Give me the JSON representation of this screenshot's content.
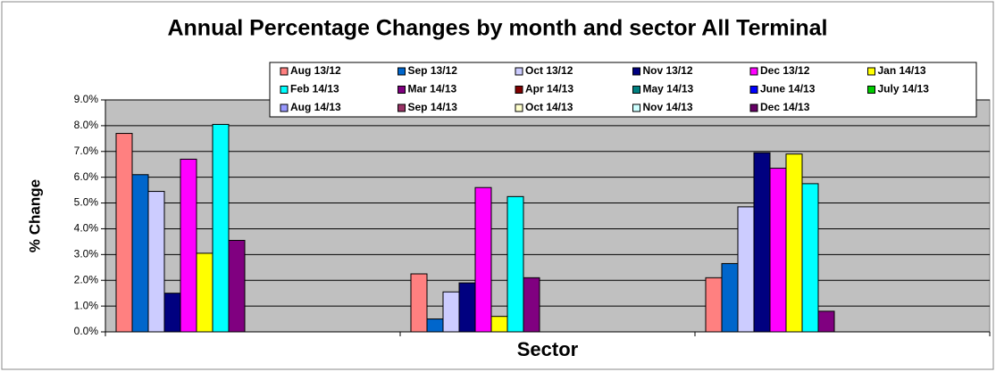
{
  "chart_data": {
    "type": "bar",
    "title": "Annual Percentage Changes by month and sector All Terminal",
    "x_label": "Sector",
    "y_label": "% Change",
    "categories": [
      null,
      null,
      null
    ],
    "series": [
      {
        "name": "Aug 13/12",
        "color": "#ff8080",
        "values": [
          7.7,
          2.25,
          2.1
        ]
      },
      {
        "name": "Sep 13/12",
        "color": "#0066cc",
        "values": [
          6.1,
          0.5,
          2.65
        ]
      },
      {
        "name": "Oct 13/12",
        "color": "#ccccff",
        "values": [
          5.45,
          1.55,
          4.85
        ]
      },
      {
        "name": "Nov 13/12",
        "color": "#000080",
        "values": [
          1.5,
          1.9,
          6.95
        ]
      },
      {
        "name": "Dec 13/12",
        "color": "#ff00ff",
        "values": [
          6.7,
          5.6,
          6.35
        ]
      },
      {
        "name": "Jan 14/13",
        "color": "#ffff00",
        "values": [
          3.05,
          0.6,
          6.9
        ]
      },
      {
        "name": "Feb 14/13",
        "color": "#00ffff",
        "values": [
          8.05,
          5.25,
          5.75
        ]
      },
      {
        "name": "Mar 14/13",
        "color": "#800080",
        "values": [
          3.55,
          2.1,
          0.8
        ]
      },
      {
        "name": "Apr 14/13",
        "color": "#800000",
        "values": [
          null,
          null,
          null
        ]
      },
      {
        "name": "May 14/13",
        "color": "#008080",
        "values": [
          null,
          null,
          null
        ]
      },
      {
        "name": "June 14/13",
        "color": "#0000ff",
        "values": [
          null,
          null,
          null
        ]
      },
      {
        "name": "July 14/13",
        "color": "#00cc00",
        "values": [
          null,
          null,
          null
        ]
      },
      {
        "name": "Aug 14/13",
        "color": "#9999ff",
        "values": [
          null,
          null,
          null
        ]
      },
      {
        "name": "Sep 14/13",
        "color": "#993366",
        "values": [
          null,
          null,
          null
        ]
      },
      {
        "name": "Oct 14/13",
        "color": "#ffffcc",
        "values": [
          null,
          null,
          null
        ]
      },
      {
        "name": "Nov 14/13",
        "color": "#ccffff",
        "values": [
          null,
          null,
          null
        ]
      },
      {
        "name": "Dec 14/13",
        "color": "#660066",
        "values": [
          null,
          null,
          null
        ]
      }
    ],
    "ylim": [
      0,
      9
    ],
    "yticks": [
      {
        "value": 0,
        "label": "0.0%"
      },
      {
        "value": 1,
        "label": "1.0%"
      },
      {
        "value": 2,
        "label": "2.0%"
      },
      {
        "value": 3,
        "label": "3.0%"
      },
      {
        "value": 4,
        "label": "4.0%"
      },
      {
        "value": 5,
        "label": "5.0%"
      },
      {
        "value": 6,
        "label": "6.0%"
      },
      {
        "value": 7,
        "label": "7.0%"
      },
      {
        "value": 8,
        "label": "8.0%"
      },
      {
        "value": 9,
        "label": "9.0%"
      }
    ],
    "grid": true,
    "plot_background": "#c0c0c0",
    "legend": "top"
  }
}
